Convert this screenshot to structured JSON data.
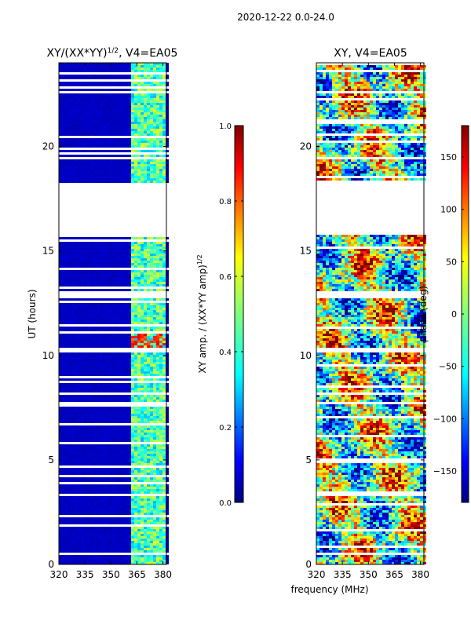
{
  "suptitle": "2020-12-22 0.0-24.0",
  "colors": {
    "jet": [
      "#00007f",
      "#0000ff",
      "#007fff",
      "#00ffff",
      "#7fff7f",
      "#ffff00",
      "#ff7f00",
      "#ff0000",
      "#7f0000"
    ],
    "gap": "#ffffff",
    "frame": "#000000"
  },
  "chart_data": [
    {
      "type": "heatmap",
      "title": "XY/(XX*YY)",
      "title_sup": "1/2",
      "title_suffix": ", V4=EA05",
      "xlabel": "",
      "ylabel": "UT (hours)",
      "x": {
        "min": 320,
        "max": 382,
        "ticks": [
          320,
          335,
          350,
          365,
          380
        ]
      },
      "y": {
        "min": 0,
        "max": 24,
        "ticks": [
          0,
          5,
          10,
          15,
          20
        ]
      },
      "colorbar": {
        "label": "XY amp. / (XX*YY amp)",
        "label_sup": "1/2",
        "min": 0.0,
        "max": 1.0,
        "ticks": [
          "0.0",
          "0.2",
          "0.4",
          "0.6",
          "0.8",
          "1.0"
        ]
      },
      "gaps_hours": [
        [
          17.8,
          18.3
        ],
        [
          15.8,
          17.8
        ],
        [
          10.2,
          10.4
        ],
        [
          12.8,
          13.1
        ]
      ],
      "bright_band_mhz": [
        360,
        381
      ],
      "background_value": 0.05
    },
    {
      "type": "heatmap",
      "title": "XY, V4=EA05",
      "xlabel": "frequency (MHz)",
      "ylabel": "",
      "x": {
        "min": 320,
        "max": 382,
        "ticks": [
          320,
          335,
          350,
          365,
          380
        ]
      },
      "y": {
        "min": 0,
        "max": 24,
        "ticks": [
          0,
          5,
          10,
          15,
          20
        ]
      },
      "colorbar": {
        "label": "phase (deg)",
        "min": -180,
        "max": 180,
        "ticks": [
          "−150",
          "−100",
          "−50",
          "0",
          "50",
          "100",
          "150"
        ]
      },
      "gaps_hours": [
        [
          17.8,
          18.3
        ],
        [
          15.8,
          17.8
        ],
        [
          10.2,
          10.4
        ],
        [
          12.8,
          13.1
        ]
      ]
    }
  ]
}
